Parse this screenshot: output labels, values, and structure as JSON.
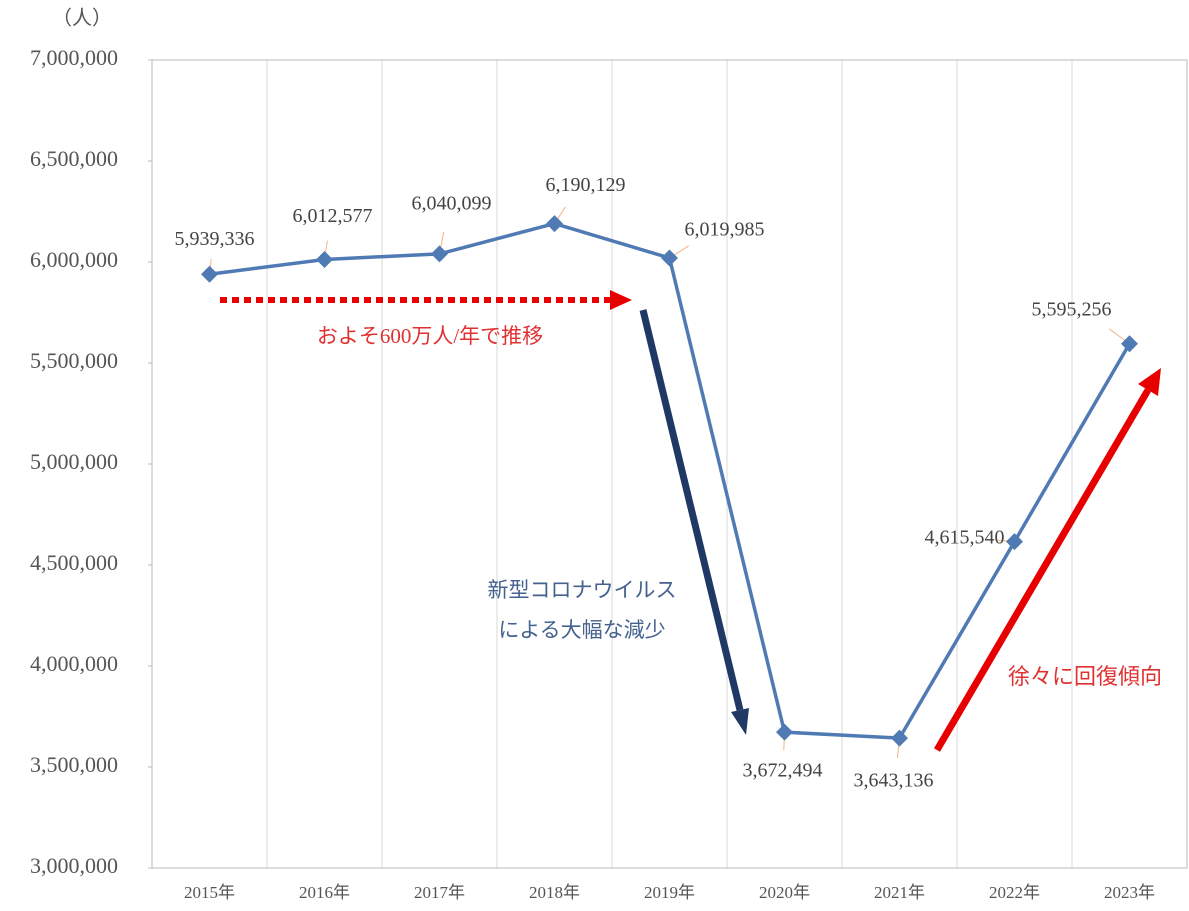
{
  "chart_data": {
    "type": "line",
    "y_axis_label": "（人）",
    "categories": [
      "2015年",
      "2016年",
      "2017年",
      "2018年",
      "2019年",
      "2020年",
      "2021年",
      "2022年",
      "2023年"
    ],
    "series": [
      {
        "color": "#4f7ab3",
        "values": [
          5939336,
          6012577,
          6040099,
          6190129,
          6019985,
          3672494,
          3643136,
          4615540,
          5595256
        ],
        "value_labels": [
          "5,939,336",
          "6,012,577",
          "6,040,099",
          "6,190,129",
          "6,019,985",
          "3,672,494",
          "3,643,136",
          "4,615,540",
          "5,595,256"
        ]
      }
    ],
    "ylim": [
      3000000,
      7000000
    ],
    "yticks": [
      {
        "value": 3000000,
        "label": "3,000,000"
      },
      {
        "value": 3500000,
        "label": "3,500,000"
      },
      {
        "value": 4000000,
        "label": "4,000,000"
      },
      {
        "value": 4500000,
        "label": "4,500,000"
      },
      {
        "value": 5000000,
        "label": "5,000,000"
      },
      {
        "value": 5500000,
        "label": "5,500,000"
      },
      {
        "value": 6000000,
        "label": "6,000,000"
      },
      {
        "value": 6500000,
        "label": "6,500,000"
      },
      {
        "value": 7000000,
        "label": "7,000,000"
      }
    ],
    "grid": true,
    "annotations": [
      "およそ600万人/年で推移",
      "新型コロナウイルス",
      "による大幅な減少",
      "徐々に回復傾向"
    ]
  }
}
